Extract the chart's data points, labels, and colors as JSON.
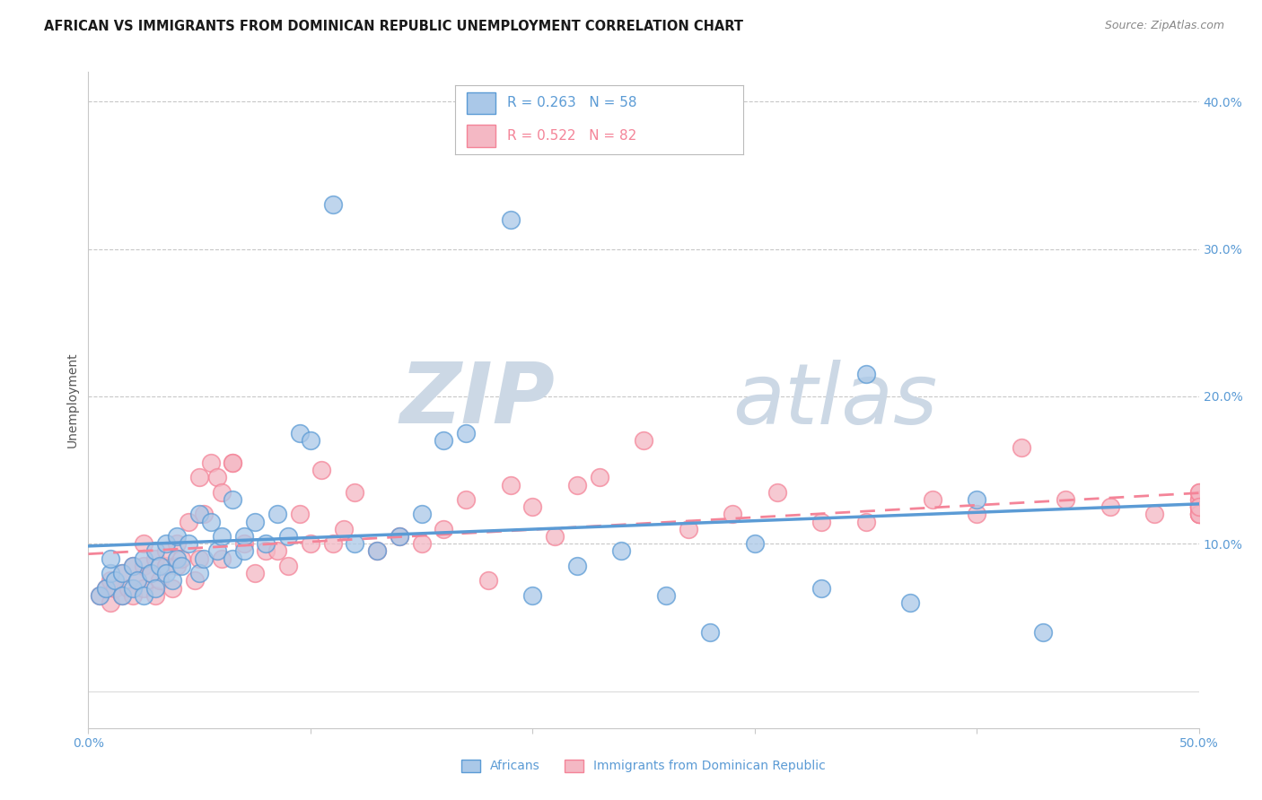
{
  "title": "AFRICAN VS IMMIGRANTS FROM DOMINICAN REPUBLIC UNEMPLOYMENT CORRELATION CHART",
  "source": "Source: ZipAtlas.com",
  "ylabel": "Unemployment",
  "xlim": [
    0,
    0.5
  ],
  "ylim": [
    -0.025,
    0.42
  ],
  "yticks": [
    0.1,
    0.2,
    0.3,
    0.4
  ],
  "yticklabels": [
    "10.0%",
    "20.0%",
    "30.0%",
    "40.0%"
  ],
  "background_color": "#ffffff",
  "grid_color": "#c8c8c8",
  "tick_color": "#5b9bd5",
  "axis_color": "#c8c8c8",
  "watermark_zip": "ZIP",
  "watermark_atlas": "atlas",
  "watermark_color": "#ccd8e5",
  "legend_R1": "0.263",
  "legend_N1": "58",
  "legend_R2": "0.522",
  "legend_N2": "82",
  "blue_color": "#5b9bd5",
  "pink_color": "#f48498",
  "blue_fill": "#aac8e8",
  "pink_fill": "#f4b8c4",
  "legend_label1": "Africans",
  "legend_label2": "Immigrants from Dominican Republic",
  "africans_x": [
    0.005,
    0.008,
    0.01,
    0.01,
    0.012,
    0.015,
    0.015,
    0.02,
    0.02,
    0.022,
    0.025,
    0.025,
    0.028,
    0.03,
    0.03,
    0.032,
    0.035,
    0.035,
    0.038,
    0.04,
    0.04,
    0.042,
    0.045,
    0.05,
    0.05,
    0.052,
    0.055,
    0.058,
    0.06,
    0.065,
    0.065,
    0.07,
    0.07,
    0.075,
    0.08,
    0.085,
    0.09,
    0.095,
    0.1,
    0.11,
    0.12,
    0.13,
    0.14,
    0.15,
    0.16,
    0.17,
    0.19,
    0.2,
    0.22,
    0.24,
    0.26,
    0.28,
    0.3,
    0.33,
    0.35,
    0.37,
    0.4,
    0.43
  ],
  "africans_y": [
    0.065,
    0.07,
    0.08,
    0.09,
    0.075,
    0.065,
    0.08,
    0.07,
    0.085,
    0.075,
    0.065,
    0.09,
    0.08,
    0.07,
    0.095,
    0.085,
    0.08,
    0.1,
    0.075,
    0.09,
    0.105,
    0.085,
    0.1,
    0.08,
    0.12,
    0.09,
    0.115,
    0.095,
    0.105,
    0.09,
    0.13,
    0.095,
    0.105,
    0.115,
    0.1,
    0.12,
    0.105,
    0.175,
    0.17,
    0.33,
    0.1,
    0.095,
    0.105,
    0.12,
    0.17,
    0.175,
    0.32,
    0.065,
    0.085,
    0.095,
    0.065,
    0.04,
    0.1,
    0.07,
    0.215,
    0.06,
    0.13,
    0.04
  ],
  "dr_x": [
    0.005,
    0.008,
    0.01,
    0.01,
    0.012,
    0.015,
    0.015,
    0.018,
    0.02,
    0.02,
    0.022,
    0.025,
    0.025,
    0.025,
    0.028,
    0.03,
    0.03,
    0.032,
    0.035,
    0.035,
    0.038,
    0.04,
    0.04,
    0.042,
    0.045,
    0.048,
    0.05,
    0.05,
    0.052,
    0.055,
    0.058,
    0.06,
    0.06,
    0.065,
    0.065,
    0.07,
    0.075,
    0.08,
    0.085,
    0.09,
    0.095,
    0.1,
    0.105,
    0.11,
    0.115,
    0.12,
    0.13,
    0.14,
    0.15,
    0.16,
    0.17,
    0.18,
    0.19,
    0.2,
    0.21,
    0.22,
    0.23,
    0.25,
    0.27,
    0.29,
    0.31,
    0.33,
    0.35,
    0.38,
    0.4,
    0.42,
    0.44,
    0.46,
    0.48,
    0.5,
    0.5,
    0.5,
    0.5,
    0.5,
    0.5,
    0.5,
    0.5,
    0.5,
    0.5,
    0.5,
    0.5,
    0.5
  ],
  "dr_y": [
    0.065,
    0.07,
    0.075,
    0.06,
    0.07,
    0.08,
    0.065,
    0.07,
    0.065,
    0.085,
    0.075,
    0.07,
    0.085,
    0.1,
    0.08,
    0.065,
    0.09,
    0.075,
    0.085,
    0.095,
    0.07,
    0.085,
    0.1,
    0.09,
    0.115,
    0.075,
    0.09,
    0.145,
    0.12,
    0.155,
    0.145,
    0.09,
    0.135,
    0.155,
    0.155,
    0.1,
    0.08,
    0.095,
    0.095,
    0.085,
    0.12,
    0.1,
    0.15,
    0.1,
    0.11,
    0.135,
    0.095,
    0.105,
    0.1,
    0.11,
    0.13,
    0.075,
    0.14,
    0.125,
    0.105,
    0.14,
    0.145,
    0.17,
    0.11,
    0.12,
    0.135,
    0.115,
    0.115,
    0.13,
    0.12,
    0.165,
    0.13,
    0.125,
    0.12,
    0.125,
    0.13,
    0.12,
    0.125,
    0.12,
    0.13,
    0.125,
    0.12,
    0.135,
    0.125,
    0.12,
    0.135,
    0.125
  ]
}
